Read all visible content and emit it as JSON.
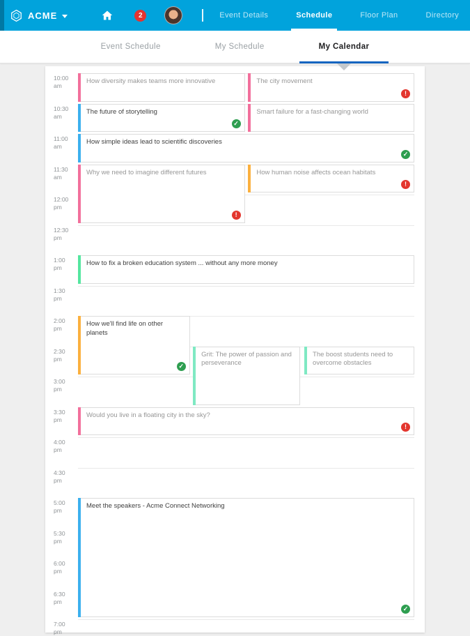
{
  "header": {
    "brand": "ACME",
    "badge_count": "2",
    "nav": [
      {
        "label": "Event Details",
        "active": false
      },
      {
        "label": "Schedule",
        "active": true
      },
      {
        "label": "Floor Plan",
        "active": false
      },
      {
        "label": "Directory",
        "active": false
      }
    ]
  },
  "tabs": [
    {
      "label": "Event Schedule",
      "active": false
    },
    {
      "label": "My Schedule",
      "active": false
    },
    {
      "label": "My Calendar",
      "active": true
    }
  ],
  "calendar": {
    "times": [
      "10:00 am",
      "10:30 am",
      "11:00 am",
      "11:30 am",
      "12:00 pm",
      "12:30 pm",
      "1:00 pm",
      "1:30 pm",
      "2:00 pm",
      "2:30 pm",
      "3:00 pm",
      "3:30 pm",
      "4:00 pm",
      "4:30 pm",
      "5:00 pm",
      "5:30 pm",
      "6:00 pm",
      "6:30 pm",
      "7:00 pm"
    ],
    "status_glyphs": {
      "alert": "!",
      "done": "✓"
    },
    "events": [
      {
        "title": "How diversity makes teams more innovative",
        "start": "10:00 am",
        "end": "10:30 am",
        "column": "left-half",
        "color": "#f2709c",
        "status": null,
        "muted": true
      },
      {
        "title": "The city movement",
        "start": "10:00 am",
        "end": "10:30 am",
        "column": "right-half",
        "color": "#f2709c",
        "status": "alert",
        "muted": true
      },
      {
        "title": "The future of storytelling",
        "start": "10:30 am",
        "end": "11:00 am",
        "column": "left-half",
        "color": "#3cb0ee",
        "status": "done",
        "muted": false
      },
      {
        "title": "Smart failure for a fast-changing world",
        "start": "10:30 am",
        "end": "11:00 am",
        "column": "right-half",
        "color": "#f2709c",
        "status": null,
        "muted": true
      },
      {
        "title": "How simple ideas lead to scientific discoveries",
        "start": "11:00 am",
        "end": "11:30 am",
        "column": "full",
        "color": "#3cb0ee",
        "status": "done",
        "muted": false
      },
      {
        "title": "Why we need to imagine different futures",
        "start": "11:30 am",
        "end": "12:30 pm",
        "column": "left-half",
        "color": "#f2709c",
        "status": "alert",
        "muted": true
      },
      {
        "title": "How human noise affects ocean habitats",
        "start": "11:30 am",
        "end": "12:00 pm",
        "column": "right-half",
        "color": "#fbb03f",
        "status": "alert",
        "muted": true
      },
      {
        "title": "How to fix a broken education system ... without any more money",
        "start": "1:00 pm",
        "end": "1:30 pm",
        "column": "full",
        "color": "#55e6a0",
        "status": null,
        "muted": false
      },
      {
        "title": "How we'll find life on other planets",
        "start": "2:00 pm",
        "end": "3:00 pm",
        "column": "third-1",
        "color": "#fbb03f",
        "status": "done",
        "muted": false
      },
      {
        "title": "Grit: The power of passion and perseverance",
        "start": "2:30 pm",
        "end": "3:30 pm",
        "column": "third-2",
        "color": "#7fe9c3",
        "status": null,
        "muted": true
      },
      {
        "title": "The boost students need to overcome obstacles",
        "start": "2:30 pm",
        "end": "3:00 pm",
        "column": "third-3",
        "color": "#7fe9c3",
        "status": null,
        "muted": true
      },
      {
        "title": "Would you live in a floating city in the sky?",
        "start": "3:30 pm",
        "end": "4:00 pm",
        "column": "full",
        "color": "#f2709c",
        "status": "alert",
        "muted": true
      },
      {
        "title": "Meet the speakers - Acme Connect Networking",
        "start": "5:00 pm",
        "end": "7:00 pm",
        "column": "full",
        "color": "#3cb0ee",
        "status": "done",
        "muted": false
      }
    ]
  }
}
